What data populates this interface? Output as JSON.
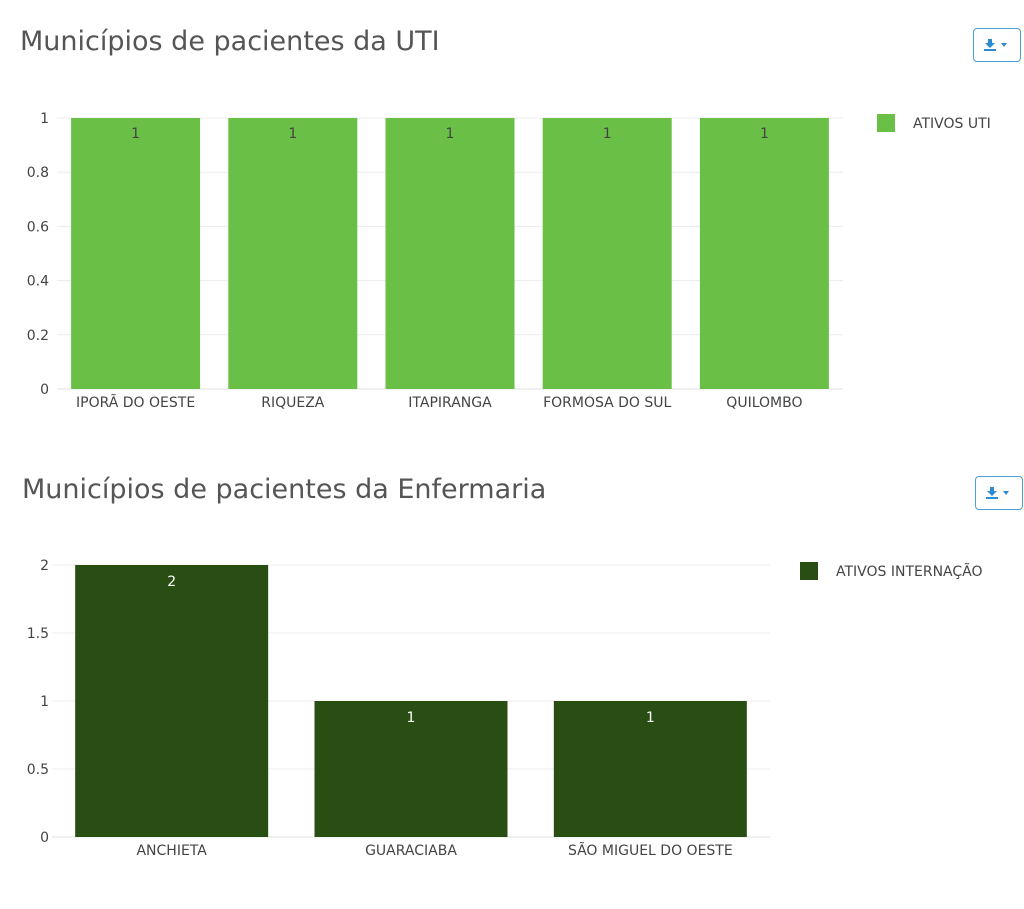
{
  "export_icon": "download-caret-icon",
  "chart_data": [
    {
      "type": "bar",
      "title": "Municípios de pacientes da UTI",
      "categories": [
        "IPORÃ DO OESTE",
        "RIQUEZA",
        "ITAPIRANGA",
        "FORMOSA DO SUL",
        "QUILOMBO"
      ],
      "series": [
        {
          "name": "ATIVOS UTI",
          "values": [
            1,
            1,
            1,
            1,
            1
          ],
          "color": "#6abf47",
          "label_color": "#444444"
        }
      ],
      "yticks": [
        "0",
        "0.2",
        "0.4",
        "0.6",
        "0.8",
        "1"
      ],
      "ylim": [
        0,
        1
      ],
      "grid": true,
      "legend_position": "right",
      "xlabel": "",
      "ylabel": ""
    },
    {
      "type": "bar",
      "title": "Municípios de pacientes da Enfermaria",
      "categories": [
        "ANCHIETA",
        "GUARACIABA",
        "SÃO MIGUEL DO OESTE"
      ],
      "series": [
        {
          "name": "ATIVOS INTERNAÇÃO",
          "values": [
            2,
            1,
            1
          ],
          "color": "#284e14",
          "label_color": "#ffffff"
        }
      ],
      "yticks": [
        "0",
        "0.5",
        "1",
        "1.5",
        "2"
      ],
      "ylim": [
        0,
        2
      ],
      "grid": true,
      "legend_position": "right",
      "xlabel": "",
      "ylabel": ""
    }
  ]
}
